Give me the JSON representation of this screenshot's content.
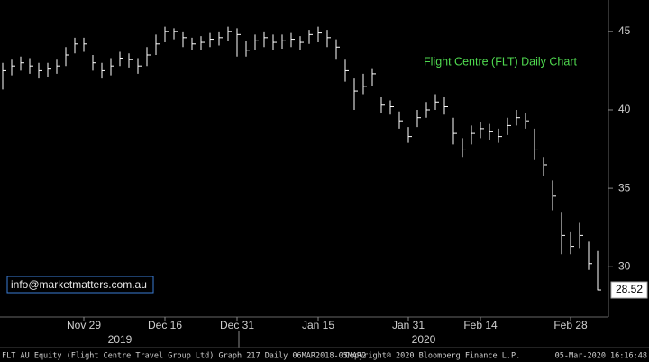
{
  "chart_data": {
    "type": "ohlc",
    "title": "Flight Centre (FLT) Daily Chart",
    "watermark": "info@marketmatters.com.au",
    "categories": [
      null,
      null,
      null,
      null,
      null,
      null,
      null,
      null,
      null,
      "Nov 29",
      null,
      null,
      null,
      null,
      null,
      null,
      null,
      null,
      "Dec 16",
      null,
      null,
      null,
      null,
      null,
      null,
      null,
      "Dec 31",
      null,
      null,
      null,
      null,
      null,
      null,
      null,
      null,
      "Jan 15",
      null,
      null,
      null,
      null,
      null,
      null,
      null,
      null,
      null,
      "Jan 31",
      null,
      null,
      null,
      null,
      null,
      null,
      null,
      "Feb 14",
      null,
      null,
      null,
      null,
      null,
      null,
      null,
      null,
      null,
      "Feb 28",
      null,
      null,
      null
    ],
    "high": [
      43,
      43.2,
      43.4,
      43.3,
      43,
      43,
      43.2,
      44,
      44.6,
      44.6,
      43.5,
      43,
      43.3,
      43.7,
      43.6,
      43.3,
      44,
      44.8,
      45.3,
      45.2,
      45,
      44.6,
      44.7,
      44.9,
      45,
      45.3,
      45.2,
      44.4,
      44.8,
      45,
      44.8,
      44.8,
      44.9,
      44.7,
      45.1,
      45.3,
      45.1,
      44.5,
      43.2,
      42,
      42.3,
      42.6,
      40.8,
      40.6,
      39.9,
      38.9,
      40,
      40.5,
      41,
      40.8,
      39.5,
      38.2,
      39,
      39.2,
      39.1,
      38.8,
      39.5,
      40,
      39.8,
      38.8,
      37,
      35.5,
      33.5,
      32.2,
      32.8,
      31.6,
      31
    ],
    "low": [
      41.3,
      42.2,
      42.5,
      42.3,
      42,
      42.1,
      42.3,
      42.8,
      43.6,
      43.7,
      42.5,
      42,
      42.2,
      42.8,
      42.7,
      42.3,
      42.8,
      43.5,
      44.3,
      44.5,
      44,
      43.8,
      43.8,
      44,
      44.1,
      44.4,
      43.4,
      43.4,
      43.8,
      44,
      43.8,
      43.9,
      44,
      43.8,
      44.2,
      44.3,
      44,
      43.2,
      41.8,
      40,
      41,
      41.5,
      39.8,
      39.7,
      38.8,
      37.9,
      38.9,
      39.5,
      40,
      39.7,
      37.8,
      37,
      37.8,
      38.2,
      38.1,
      37.9,
      38.4,
      39,
      38.8,
      36.8,
      35.8,
      33.6,
      30.8,
      30.8,
      31.2,
      29.8,
      28.5
    ],
    "close": [
      42.5,
      42.8,
      43,
      42.8,
      42.5,
      42.6,
      42.8,
      43.5,
      44.2,
      44.2,
      43,
      42.5,
      42.8,
      43.3,
      43.2,
      42.8,
      43.5,
      44.2,
      45,
      45,
      44.6,
      44.2,
      44.3,
      44.5,
      44.6,
      45,
      44.8,
      43.8,
      44.4,
      44.6,
      44.3,
      44.4,
      44.5,
      44.3,
      44.8,
      44.9,
      44.6,
      44,
      42.5,
      41.2,
      41.5,
      42.3,
      40.3,
      40.2,
      39.3,
      38.3,
      39.5,
      40,
      40.5,
      40.2,
      38.5,
      37.5,
      38.5,
      38.8,
      38.6,
      38.3,
      39,
      39.5,
      39.3,
      37.5,
      36.5,
      34.5,
      32,
      31.3,
      32,
      30.2,
      28.52
    ],
    "color": "#ffffff",
    "last_value": 28.52,
    "ylim": [
      26.8,
      47
    ],
    "yticks": [
      30,
      35,
      40,
      45
    ],
    "years": [
      "2019",
      "2020"
    ],
    "footer": {
      "left": "FLT AU Equity (Flight Centre Travel Group Ltd) Graph 217  Daily 06MAR2018-05MAR2",
      "center": "Copyright® 2020 Bloomberg Finance L.P.",
      "right": "05-Mar-2020 16:16:48"
    }
  }
}
